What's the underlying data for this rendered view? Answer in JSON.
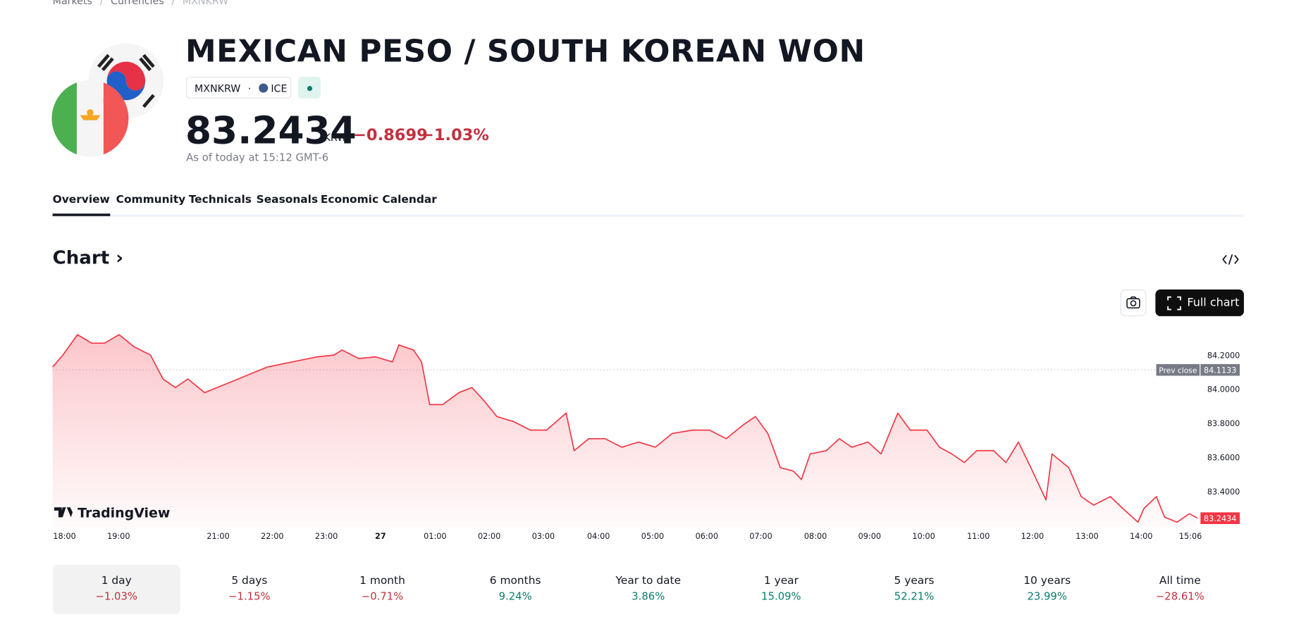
{
  "breadcrumb": [
    "Markets",
    "Currencies",
    "MXNKRW"
  ],
  "header": {
    "title": "MEXICAN PESO / SOUTH KOREAN WON",
    "symbol": "MXNKRW",
    "exchange": "ICE",
    "price": "83.2434",
    "currency": "KRW",
    "change": "−0.8699",
    "change_percent": "−1.03%",
    "timestamp": "As of today at 15:12 GMT-6"
  },
  "tabs": [
    "Overview",
    "Community",
    "Technicals",
    "Seasonals",
    "Economic Calendar"
  ],
  "section_title": "Chart",
  "full_chart_button": "Full chart",
  "chart_data": {
    "type": "line",
    "watermark": "TradingView",
    "x": [
      0,
      0.19,
      0.46,
      0.72,
      0.96,
      1.23,
      1.5,
      1.81,
      2.04,
      2.27,
      2.5,
      2.81,
      3.12,
      3.43,
      3.66,
      3.97,
      4.27,
      4.58,
      4.89,
      5.2,
      5.35,
      5.66,
      5.97,
      6.28,
      6.4,
      6.67,
      6.82,
      6.97,
      7.21,
      7.51,
      7.75,
      7.98,
      8.21,
      8.52,
      8.83,
      9.13,
      9.49,
      9.64,
      9.91,
      10.21,
      10.52,
      10.83,
      11.14,
      11.45,
      11.83,
      12.14,
      12.45,
      12.76,
      12.99,
      13.22,
      13.45,
      13.69,
      13.84,
      14.0,
      14.3,
      14.54,
      14.77,
      15.07,
      15.31,
      15.62,
      15.85,
      16.16,
      16.39,
      16.62,
      16.85,
      17.08,
      17.39,
      17.62,
      17.85,
      18.08,
      18.36,
      18.47,
      18.78,
      19.01,
      19.24,
      19.55,
      19.78,
      20.06,
      20.17,
      20.4,
      20.55,
      20.78,
      21.01,
      21.16
    ],
    "series": [
      {
        "color": "#f23645",
        "values": [
          84.13,
          84.2,
          84.32,
          84.27,
          84.27,
          84.32,
          84.25,
          84.2,
          84.06,
          84.01,
          84.06,
          83.98,
          84.02,
          84.06,
          84.09,
          84.13,
          84.15,
          84.17,
          84.19,
          84.2,
          84.23,
          84.18,
          84.19,
          84.16,
          84.26,
          84.23,
          84.16,
          83.91,
          83.91,
          83.98,
          84.01,
          83.93,
          83.84,
          83.81,
          83.76,
          83.76,
          83.86,
          83.64,
          83.71,
          83.71,
          83.66,
          83.69,
          83.66,
          83.74,
          83.76,
          83.76,
          83.71,
          83.79,
          83.84,
          83.74,
          83.54,
          83.52,
          83.47,
          83.62,
          83.64,
          83.71,
          83.66,
          83.69,
          83.62,
          83.86,
          83.76,
          83.76,
          83.66,
          83.62,
          83.57,
          83.64,
          83.64,
          83.57,
          83.69,
          83.54,
          83.35,
          83.62,
          83.54,
          83.37,
          83.32,
          83.37,
          83.3,
          83.22,
          83.3,
          83.37,
          83.25,
          83.22,
          83.27,
          83.2434
        ]
      }
    ],
    "xlim": [
      0,
      21.2
    ],
    "ylim": [
      83.19,
      84.35
    ],
    "xticks": [
      {
        "value": 0.22,
        "label": "18:00"
      },
      {
        "value": 1.22,
        "label": "19:00"
      },
      {
        "value": 3.06,
        "label": "21:00"
      },
      {
        "value": 4.06,
        "label": "22:00"
      },
      {
        "value": 5.06,
        "label": "23:00"
      },
      {
        "value": 6.06,
        "label": "27"
      },
      {
        "value": 7.07,
        "label": "01:00"
      },
      {
        "value": 8.07,
        "label": "02:00"
      },
      {
        "value": 9.07,
        "label": "03:00"
      },
      {
        "value": 10.09,
        "label": "04:00"
      },
      {
        "value": 11.09,
        "label": "05:00"
      },
      {
        "value": 12.09,
        "label": "06:00"
      },
      {
        "value": 13.09,
        "label": "07:00"
      },
      {
        "value": 14.1,
        "label": "08:00"
      },
      {
        "value": 15.1,
        "label": "09:00"
      },
      {
        "value": 16.1,
        "label": "10:00"
      },
      {
        "value": 17.11,
        "label": "11:00"
      },
      {
        "value": 18.11,
        "label": "12:00"
      },
      {
        "value": 19.12,
        "label": "13:00"
      },
      {
        "value": 20.12,
        "label": "14:00"
      },
      {
        "value": 21.03,
        "label": "15:06"
      }
    ],
    "yticks": [
      {
        "value": 83.4,
        "label": "83.4000"
      },
      {
        "value": 83.6,
        "label": "83.6000"
      },
      {
        "value": 83.8,
        "label": "83.8000"
      },
      {
        "value": 84.0,
        "label": "84.0000"
      },
      {
        "value": 84.2,
        "label": "84.2000"
      }
    ],
    "reference_line": {
      "label": "Prev close",
      "value": 84.1133
    }
  },
  "periods": [
    {
      "label": "1 day",
      "change": "−1.03%"
    },
    {
      "label": "5 days",
      "change": "−1.15%"
    },
    {
      "label": "1 month",
      "change": "−0.71%"
    },
    {
      "label": "6 months",
      "change": "9.24%"
    },
    {
      "label": "Year to date",
      "change": "3.86%"
    },
    {
      "label": "1 year",
      "change": "15.09%"
    },
    {
      "label": "5 years",
      "change": "52.21%"
    },
    {
      "label": "10 years",
      "change": "23.99%"
    },
    {
      "label": "All time",
      "change": "−28.61%"
    }
  ]
}
